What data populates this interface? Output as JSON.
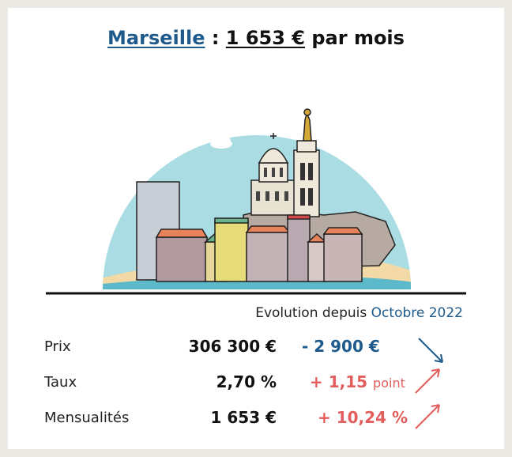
{
  "header": {
    "city": "Marseille",
    "separator": " : ",
    "amount": "1 653 €",
    "suffix": " par mois"
  },
  "evolution": {
    "prefix": "Evolution depuis ",
    "period": "Octobre 2022"
  },
  "rows": [
    {
      "label": "Prix",
      "value": "306 300 €",
      "change": "- 2 900 €",
      "change_unit": "",
      "direction": "down"
    },
    {
      "label": "Taux",
      "value": "2,70 %",
      "change": "+ 1,15",
      "change_unit": "point",
      "direction": "up"
    },
    {
      "label": "Mensualités",
      "value": "1 653 €",
      "change": "+ 10,24 %",
      "change_unit": "",
      "direction": "up"
    }
  ],
  "colors": {
    "accent_blue": "#1e5a8c",
    "increase_red": "#e35d5d",
    "sky": "#a9dce3",
    "sand": "#f2d9a6",
    "sea": "#5bb9c9"
  }
}
